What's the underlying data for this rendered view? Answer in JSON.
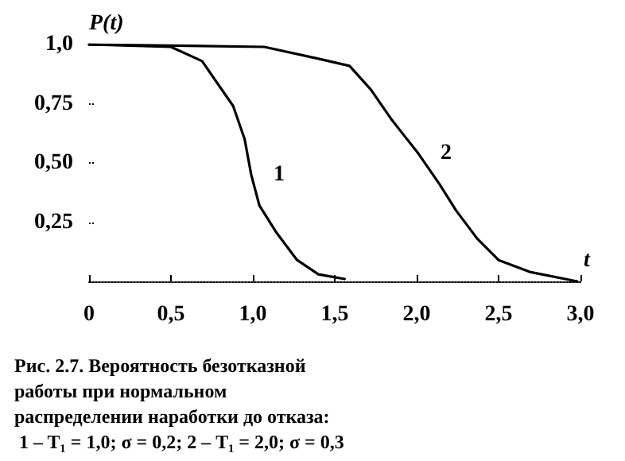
{
  "chart_data": {
    "type": "line",
    "xlabel": "t",
    "ylabel": "P(t)",
    "annotations": [
      "Рис. 2.7. Вероятность безотказной работы при нормальном распределении наработки до отказа: 1 – T₁ = 1,0; σ = 0,2; 2 – T₁ = 2,0; σ = 0,3"
    ],
    "series": [
      {
        "name": "1",
        "color": "#000000",
        "x": [
          0,
          0.5,
          0.69,
          0.88,
          0.95,
          0.99,
          1.04,
          1.14,
          1.27,
          1.4,
          1.56
        ],
        "values": [
          1.0,
          0.99,
          0.93,
          0.74,
          0.6,
          0.45,
          0.32,
          0.21,
          0.09,
          0.03,
          0.01
        ]
      },
      {
        "name": "2",
        "color": "#000000",
        "x": [
          0,
          1.07,
          1.4,
          1.59,
          1.72,
          1.85,
          2.01,
          2.14,
          2.24,
          2.37,
          2.5,
          2.69,
          2.98
        ],
        "values": [
          1.0,
          0.99,
          0.94,
          0.91,
          0.81,
          0.68,
          0.54,
          0.41,
          0.3,
          0.18,
          0.09,
          0.04,
          0.0
        ]
      }
    ],
    "xlim": [
      0,
      3.0
    ],
    "ylim": [
      0,
      1.0
    ],
    "xticks": [
      0,
      {
        "value": 0.5,
        "label": "0,5"
      },
      {
        "value": 1.0,
        "label": "1,0"
      },
      {
        "value": 1.5,
        "label": "1,5"
      },
      {
        "value": 2.0,
        "label": "2,0"
      },
      {
        "value": 2.5,
        "label": "2,5"
      },
      {
        "value": 3.0,
        "label": "3,0"
      }
    ],
    "yticks": [
      {
        "value": 0.25,
        "label": "0,25"
      },
      {
        "value": 0.5,
        "label": "0,50"
      },
      {
        "value": 0.75,
        "label": "0,75"
      },
      {
        "value": 1.0,
        "label": "1,0"
      }
    ],
    "grid": false,
    "legend": false,
    "marker": "none",
    "line_style": "solid"
  }
}
